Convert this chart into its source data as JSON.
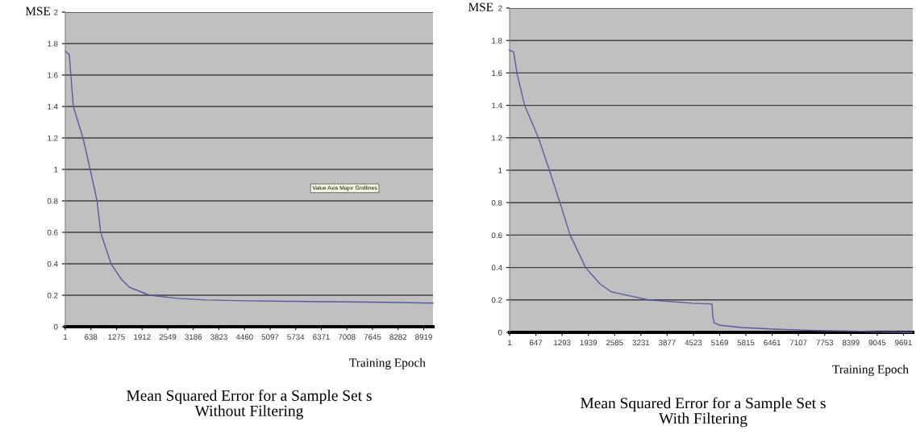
{
  "chart_data": [
    {
      "type": "line",
      "title": "Mean Squared Error for a Sample Set s\nWithout Filtering",
      "xlabel": "Training Epoch",
      "ylabel": "MSE",
      "annotations": [
        "Value Axis Major Gridlines"
      ],
      "x": [
        1,
        100,
        200,
        440,
        620,
        790,
        880,
        1140,
        1400,
        1600,
        2100,
        2800,
        3500,
        4500,
        6000,
        8000,
        9150
      ],
      "series": [
        {
          "color": "#5a5aa6",
          "values": [
            1.75,
            1.73,
            1.4,
            1.2,
            1.0,
            0.8,
            0.6,
            0.4,
            0.3,
            0.25,
            0.2,
            0.18,
            0.17,
            0.165,
            0.16,
            0.155,
            0.15
          ]
        }
      ],
      "xlim": [
        1,
        9150
      ],
      "xticks": [
        1,
        638,
        1275,
        1912,
        2549,
        3186,
        3823,
        4460,
        5097,
        5734,
        6371,
        7008,
        7645,
        8282,
        8919
      ],
      "ylim": [
        0,
        2
      ],
      "yticks": [
        0,
        0.2,
        0.4,
        0.6,
        0.8,
        1,
        1.2,
        1.4,
        1.6,
        1.8,
        2
      ],
      "grid": "y",
      "legend": false
    },
    {
      "type": "line",
      "title": "Mean Squared Error for a Sample Set s\nWith Filtering",
      "xlabel": "Training Epoch",
      "ylabel": "MSE",
      "x": [
        1,
        100,
        180,
        370,
        710,
        980,
        1240,
        1490,
        1870,
        2220,
        2500,
        3420,
        4500,
        4980,
        5000,
        5030,
        5150,
        5700,
        6500,
        7500,
        8500,
        9000,
        9900
      ],
      "series": [
        {
          "color": "#5a5aa6",
          "values": [
            1.74,
            1.73,
            1.6,
            1.4,
            1.2,
            1.0,
            0.8,
            0.6,
            0.4,
            0.3,
            0.25,
            0.2,
            0.18,
            0.175,
            0.1,
            0.06,
            0.045,
            0.03,
            0.02,
            0.012,
            0.008,
            0.003,
            0
          ]
        }
      ],
      "xlim": [
        1,
        9920
      ],
      "xticks": [
        1,
        647,
        1293,
        1939,
        2585,
        3231,
        3877,
        4523,
        5169,
        5815,
        6461,
        7107,
        7753,
        8399,
        9045,
        9691
      ],
      "ylim": [
        0,
        2
      ],
      "yticks": [
        0,
        0.2,
        0.4,
        0.6,
        0.8,
        1,
        1.2,
        1.4,
        1.6,
        1.8,
        2
      ],
      "grid": "y",
      "legend": false
    }
  ]
}
